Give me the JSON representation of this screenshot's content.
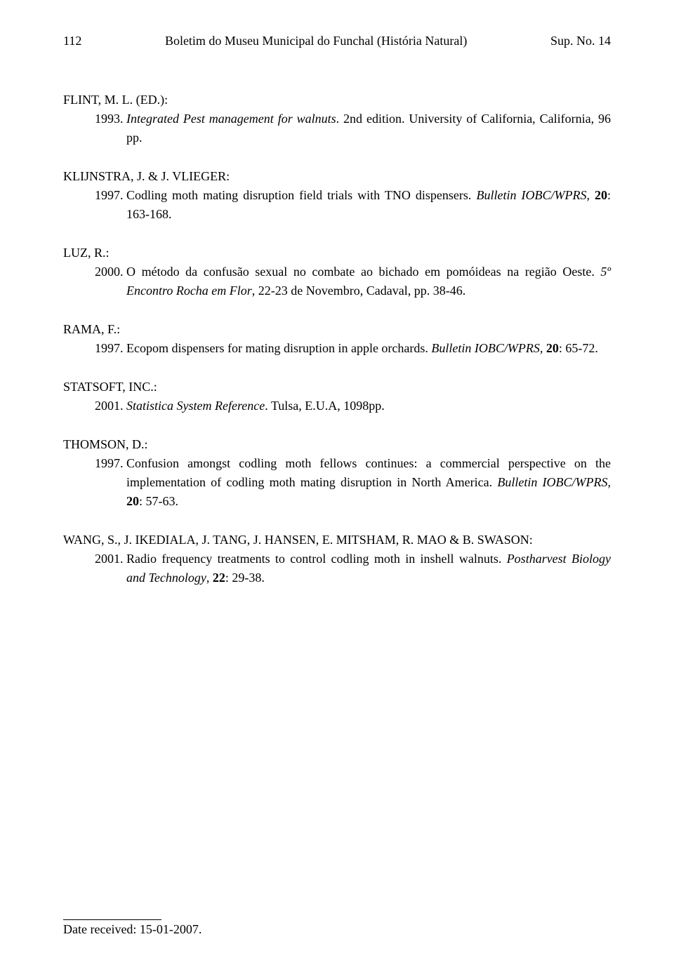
{
  "header": {
    "page_number": "112",
    "title": "Boletim do Museu Municipal do Funchal (História Natural)",
    "supplement": "Sup. No. 14"
  },
  "references": [
    {
      "author": "FLINT, M. L. (ED.):",
      "year": "1993.",
      "text_parts": [
        {
          "text": "Integrated Pest management for walnuts",
          "italic": true
        },
        {
          "text": ". 2nd edition. University of California, California, 96 pp."
        }
      ]
    },
    {
      "author": "KLIJNSTRA, J. & J. VLIEGER:",
      "year": "1997.",
      "text_parts": [
        {
          "text": "Codling moth mating disruption field trials with TNO dispensers. "
        },
        {
          "text": "Bulletin IOBC/WPRS,",
          "italic": true
        },
        {
          "text": " "
        },
        {
          "text": "20",
          "bold": true
        },
        {
          "text": ": 163-168."
        }
      ]
    },
    {
      "author": "LUZ, R.:",
      "year": "2000.",
      "text_parts": [
        {
          "text": "O método da confusão sexual no combate ao bichado em pomóideas na região Oeste. "
        },
        {
          "text": "5º Encontro Rocha em Flor",
          "italic": true
        },
        {
          "text": ", 22-23 de Novembro, Cadaval, pp. 38-46."
        }
      ]
    },
    {
      "author": "RAMA, F.:",
      "year": "1997.",
      "text_parts": [
        {
          "text": "Ecopom dispensers for mating disruption in apple orchards. "
        },
        {
          "text": "Bulletin IOBC/WPRS,",
          "italic": true
        },
        {
          "text": " "
        },
        {
          "text": "20",
          "bold": true
        },
        {
          "text": ": 65-72."
        }
      ]
    },
    {
      "author": "STATSOFT, INC.:",
      "year": "2001.",
      "text_parts": [
        {
          "text": "Statistica System Reference",
          "italic": true
        },
        {
          "text": ". Tulsa, E.U.A, 1098pp."
        }
      ]
    },
    {
      "author": "THOMSON, D.:",
      "year": "1997.",
      "text_parts": [
        {
          "text": "Confusion amongst codling moth fellows continues: a commercial perspective on the implementation of codling moth mating disruption in North America. "
        },
        {
          "text": "Bulletin IOBC/WPRS,",
          "italic": true
        },
        {
          "text": " "
        },
        {
          "text": "20",
          "bold": true
        },
        {
          "text": ": 57-63."
        }
      ]
    },
    {
      "author": "WANG, S., J. IKEDIALA, J. TANG, J. HANSEN, E. MITSHAM, R. MAO & B. SWASON:",
      "year": "2001.",
      "text_parts": [
        {
          "text": "Radio frequency treatments to control codling moth in inshell walnuts. "
        },
        {
          "text": "Postharvest Biology and Technology",
          "italic": true
        },
        {
          "text": ", "
        },
        {
          "text": "22",
          "bold": true
        },
        {
          "text": ": 29-38."
        }
      ]
    }
  ],
  "date_received": "Date received: 15-01-2007."
}
